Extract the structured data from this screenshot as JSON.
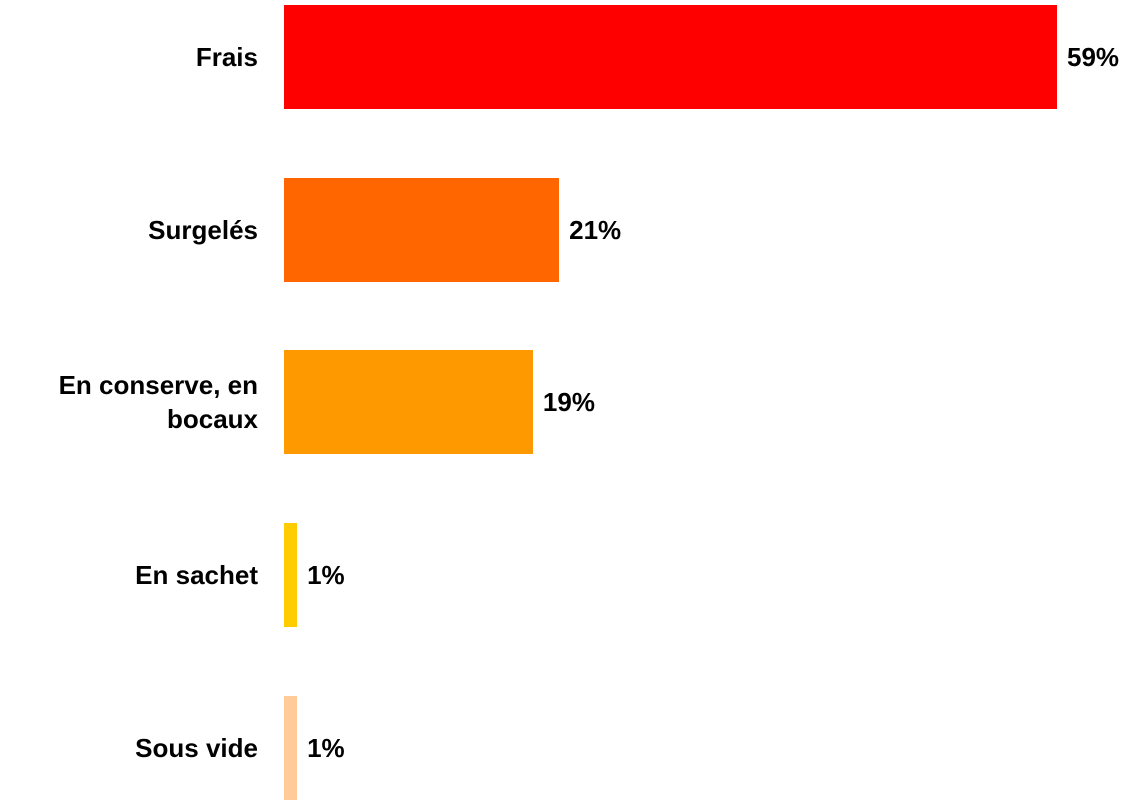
{
  "chart_data": {
    "type": "bar",
    "orientation": "horizontal",
    "categories": [
      "Frais",
      "Surgelés",
      "En conserve, en bocaux",
      "En sachet",
      "Sous vide"
    ],
    "values": [
      59,
      21,
      19,
      1,
      1
    ],
    "value_labels": [
      "59%",
      "21%",
      "19%",
      "1%",
      "1%"
    ],
    "colors": [
      "#ff0000",
      "#ff6600",
      "#ff9900",
      "#ffcc00",
      "#ffcc99"
    ]
  }
}
